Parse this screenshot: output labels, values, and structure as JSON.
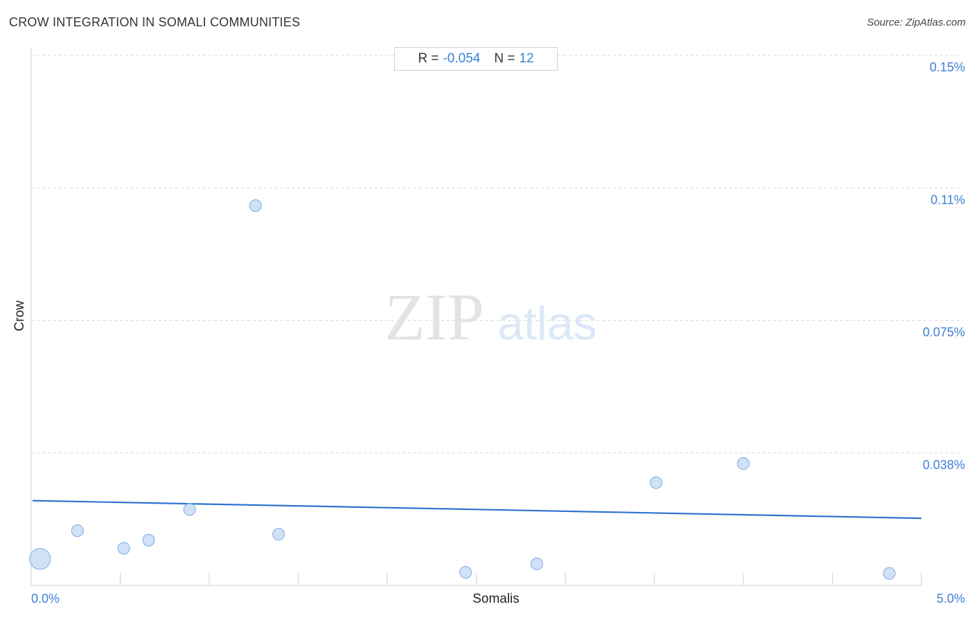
{
  "title": "CROW INTEGRATION IN SOMALI COMMUNITIES",
  "source": "Source: ZipAtlas.com",
  "stats": {
    "r_label": "R =",
    "r_value": "-0.054",
    "n_label": "N =",
    "n_value": "12"
  },
  "watermark": {
    "zip": "ZIP",
    "atlas": "atlas"
  },
  "colors": {
    "accent": "#3d7fd6",
    "point_fill": "#c9dcf5",
    "point_stroke": "#7ea9e3",
    "trend": "#2f73cf",
    "grid": "#d8d8d8"
  },
  "chart_data": {
    "type": "scatter",
    "title": "CROW INTEGRATION IN SOMALI COMMUNITIES",
    "xlabel": "Somalis",
    "ylabel": "Crow",
    "xlim": [
      0,
      5.0
    ],
    "ylim": [
      0,
      0.15
    ],
    "x_tick_labels": [
      {
        "value": 0,
        "label": "0.0%"
      },
      {
        "value": 5.0,
        "label": "5.0%"
      }
    ],
    "y_tick_labels": [
      {
        "value": 0.15,
        "label": "0.15%"
      },
      {
        "value": 0.1125,
        "label": "0.11%"
      },
      {
        "value": 0.075,
        "label": "0.075%"
      },
      {
        "value": 0.0375,
        "label": "0.038%"
      }
    ],
    "grid": "horizontal dashed",
    "points": [
      {
        "x": 0.05,
        "y": 0.0075,
        "size": "large"
      },
      {
        "x": 0.26,
        "y": 0.0155,
        "size": "small"
      },
      {
        "x": 0.52,
        "y": 0.0105,
        "size": "small"
      },
      {
        "x": 0.66,
        "y": 0.0128,
        "size": "small"
      },
      {
        "x": 0.89,
        "y": 0.0215,
        "size": "small"
      },
      {
        "x": 1.26,
        "y": 0.1075,
        "size": "small"
      },
      {
        "x": 1.39,
        "y": 0.0145,
        "size": "small"
      },
      {
        "x": 2.44,
        "y": 0.0037,
        "size": "small"
      },
      {
        "x": 2.84,
        "y": 0.0061,
        "size": "small"
      },
      {
        "x": 3.51,
        "y": 0.0291,
        "size": "small"
      },
      {
        "x": 4.0,
        "y": 0.0345,
        "size": "small"
      },
      {
        "x": 4.82,
        "y": 0.0034,
        "size": "small"
      }
    ],
    "trendline": {
      "x": [
        0,
        5.0
      ],
      "y": [
        0.024,
        0.019
      ]
    }
  }
}
